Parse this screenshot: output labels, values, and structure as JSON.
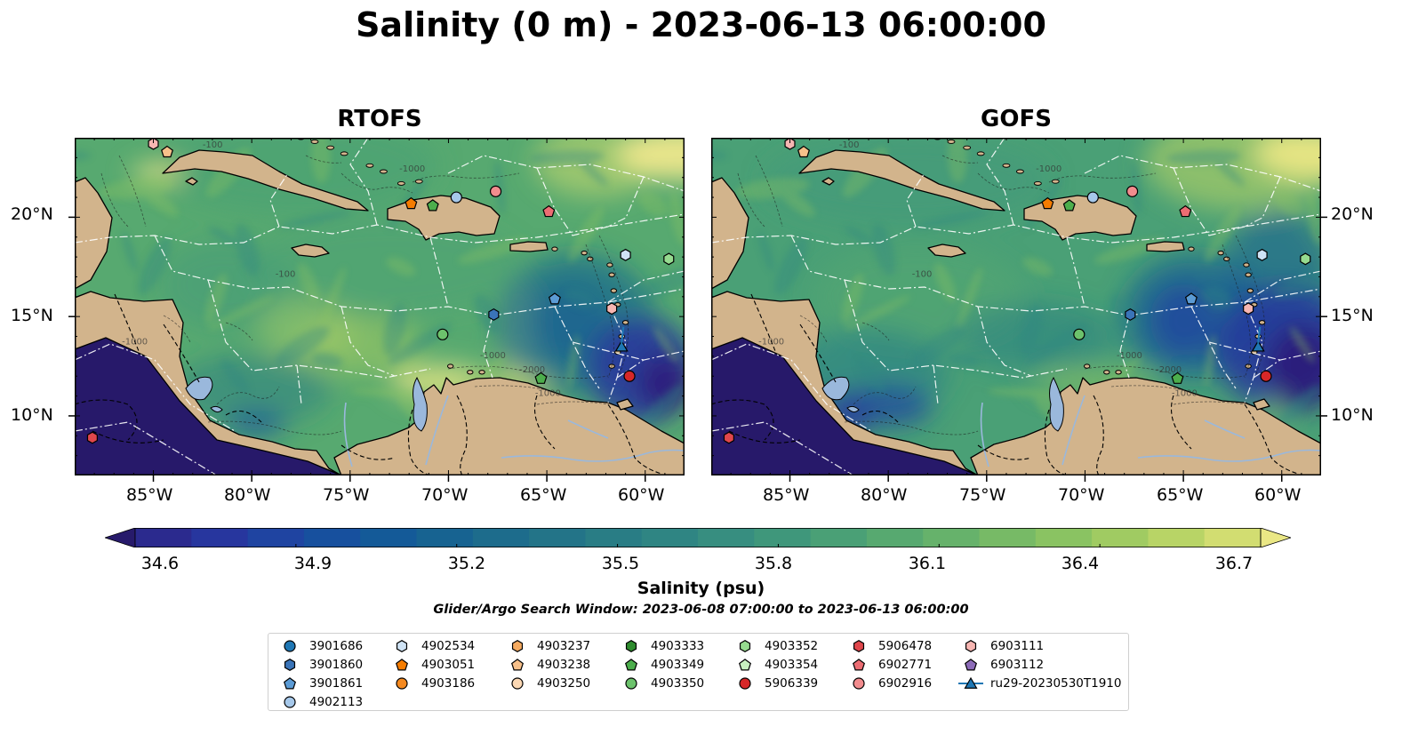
{
  "title": "Salinity (0 m) - 2023-06-13 06:00:00",
  "panels": [
    {
      "title": "RTOFS",
      "variant": "rtofs"
    },
    {
      "title": "GOFS",
      "variant": "gofs"
    }
  ],
  "axes": {
    "lat_labels": [
      "20°N",
      "15°N",
      "10°N"
    ],
    "lon_labels": [
      "85°W",
      "80°W",
      "75°W",
      "70°W",
      "65°W",
      "60°W"
    ]
  },
  "colorbar": {
    "label": "Salinity (psu)",
    "ticks": [
      "34.6",
      "34.9",
      "35.2",
      "35.5",
      "35.8",
      "36.1",
      "36.4",
      "36.7"
    ],
    "min": 34.6,
    "max": 36.7,
    "extend": "both",
    "colors": [
      "#271a6b",
      "#2b2a8e",
      "#27369e",
      "#1f44a1",
      "#17509e",
      "#145a98",
      "#176391",
      "#1d6c8c",
      "#237488",
      "#297d85",
      "#2f8583",
      "#378e80",
      "#3f977b",
      "#4aa076",
      "#57a970",
      "#66b26b",
      "#77ba66",
      "#8ac362",
      "#a0cb62",
      "#b8d466",
      "#d2dd71",
      "#eae785"
    ]
  },
  "window_note": "Glider/Argo Search Window: 2023-06-08 07:00:00 to 2023-06-13 06:00:00",
  "legend": [
    {
      "label": "3901686",
      "marker": "circle",
      "color": "#1f77b4"
    },
    {
      "label": "3901860",
      "marker": "hexagon",
      "color": "#3a74b8"
    },
    {
      "label": "3901861",
      "marker": "pentagon",
      "color": "#5b9bd5"
    },
    {
      "label": "4902113",
      "marker": "circle",
      "color": "#a6c8ea"
    },
    {
      "label": "4902534",
      "marker": "hexagon",
      "color": "#cfe3f5"
    },
    {
      "label": "4903051",
      "marker": "pentagon",
      "color": "#f57c00"
    },
    {
      "label": "4903186",
      "marker": "circle",
      "color": "#f5891f"
    },
    {
      "label": "4903237",
      "marker": "hexagon",
      "color": "#f5aa60"
    },
    {
      "label": "4903238",
      "marker": "pentagon",
      "color": "#f7c08a"
    },
    {
      "label": "4903250",
      "marker": "circle",
      "color": "#fbd8b4"
    },
    {
      "label": "4903333",
      "marker": "hexagon",
      "color": "#2e8b2e"
    },
    {
      "label": "4903349",
      "marker": "pentagon",
      "color": "#4cae4c"
    },
    {
      "label": "4903350",
      "marker": "circle",
      "color": "#6cc26c"
    },
    {
      "label": "4903352",
      "marker": "hexagon",
      "color": "#96db8f"
    },
    {
      "label": "4903354",
      "marker": "pentagon",
      "color": "#c8f0c0"
    },
    {
      "label": "5906339",
      "marker": "circle",
      "color": "#d62728"
    },
    {
      "label": "5906478",
      "marker": "hexagon",
      "color": "#e0474c"
    },
    {
      "label": "6902771",
      "marker": "pentagon",
      "color": "#ec6d73"
    },
    {
      "label": "6902916",
      "marker": "circle",
      "color": "#f28c8e"
    },
    {
      "label": "6903111",
      "marker": "hexagon",
      "color": "#f7b6b2"
    },
    {
      "label": "6903112",
      "marker": "pentagon",
      "color": "#8c6bb8"
    },
    {
      "label": "ru29-20230530T1910",
      "marker": "triangle-line",
      "color": "#1f77b4"
    }
  ],
  "platforms": [
    {
      "id": "6903111",
      "lon": -85.0,
      "lat": 23.7
    },
    {
      "id": "4903238",
      "lon": -84.3,
      "lat": 23.3
    },
    {
      "id": "4903051",
      "lon": -71.9,
      "lat": 20.7
    },
    {
      "id": "4903349",
      "lon": -70.8,
      "lat": 20.6
    },
    {
      "id": "4902113",
      "lon": -69.6,
      "lat": 21.0
    },
    {
      "id": "6902916",
      "lon": -67.6,
      "lat": 21.3
    },
    {
      "id": "6902771",
      "lon": -64.9,
      "lat": 20.3
    },
    {
      "id": "4902534",
      "lon": -61.0,
      "lat": 18.1
    },
    {
      "id": "4903352",
      "lon": -58.8,
      "lat": 17.9
    },
    {
      "id": "3901861",
      "lon": -64.6,
      "lat": 15.9
    },
    {
      "id": "3901860",
      "lon": -67.7,
      "lat": 15.1
    },
    {
      "id": "6903111",
      "lon": -61.7,
      "lat": 15.4
    },
    {
      "id": "4903350",
      "lon": -70.3,
      "lat": 14.1
    },
    {
      "id": "ru29-20230530T1910",
      "lon": -61.2,
      "lat": 13.5
    },
    {
      "id": "4903349",
      "lon": -65.3,
      "lat": 11.9
    },
    {
      "id": "5906339",
      "lon": -60.8,
      "lat": 12.0
    },
    {
      "id": "5906478",
      "lon": -88.1,
      "lat": 8.9
    }
  ]
}
